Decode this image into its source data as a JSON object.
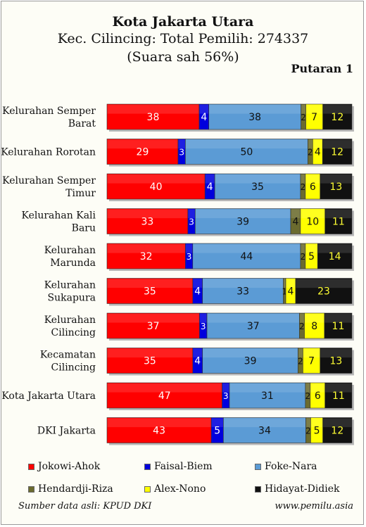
{
  "header": {
    "title": "Kota Jakarta Utara",
    "subtitle": "Kec. Cilincing: Total Pemilih: 274337",
    "subtitle2": "(Suara sah 56%)",
    "round": "Putaran 1"
  },
  "footer": {
    "source": "Sumber data asli: KPUD DKI",
    "website": "www.pemilu.asia"
  },
  "colors": {
    "Jokowi-Ahok": "#ff0000",
    "Faisal-Biem": "#0000dd",
    "Foke-Nara": "#5b9bd5",
    "Hendardji-Riza": "#6b6b2e",
    "Alex-Nono": "#ffff00",
    "Hidayat-Didiek": "#111111"
  },
  "chart_data": {
    "type": "bar",
    "orientation": "horizontal",
    "stacked": "percent",
    "categories": [
      [
        "Kelurahan Semper",
        "Barat"
      ],
      [
        "Kelurahan Rorotan"
      ],
      [
        "Kelurahan Semper",
        "Timur"
      ],
      [
        "Kelurahan Kali",
        "Baru"
      ],
      [
        "Kelurahan",
        "Marunda"
      ],
      [
        "Kelurahan",
        "Sukapura"
      ],
      [
        "Kelurahan",
        "Cilincing"
      ],
      [
        "Kecamatan",
        "Cilincing"
      ],
      [
        "Kota Jakarta Utara"
      ],
      [
        "DKI Jakarta"
      ]
    ],
    "series": [
      {
        "name": "Jokowi-Ahok",
        "values": [
          38,
          29,
          40,
          33,
          32,
          35,
          37,
          35,
          47,
          43
        ]
      },
      {
        "name": "Faisal-Biem",
        "values": [
          4,
          3,
          4,
          3,
          3,
          4,
          3,
          4,
          3,
          5
        ]
      },
      {
        "name": "Foke-Nara",
        "values": [
          38,
          50,
          35,
          39,
          44,
          33,
          37,
          39,
          31,
          34
        ]
      },
      {
        "name": "Hendardji-Riza",
        "values": [
          2,
          2,
          2,
          4,
          2,
          1,
          2,
          2,
          2,
          2
        ]
      },
      {
        "name": "Alex-Nono",
        "values": [
          7,
          4,
          6,
          10,
          5,
          4,
          8,
          7,
          6,
          5
        ]
      },
      {
        "name": "Hidayat-Didiek",
        "values": [
          12,
          12,
          13,
          11,
          14,
          23,
          11,
          13,
          11,
          12
        ]
      }
    ],
    "legend_position": "bottom",
    "legend": [
      "Jokowi-Ahok",
      "Faisal-Biem",
      "Foke-Nara",
      "Hendardji-Riza",
      "Alex-Nono",
      "Hidayat-Didiek"
    ],
    "grid": false
  }
}
